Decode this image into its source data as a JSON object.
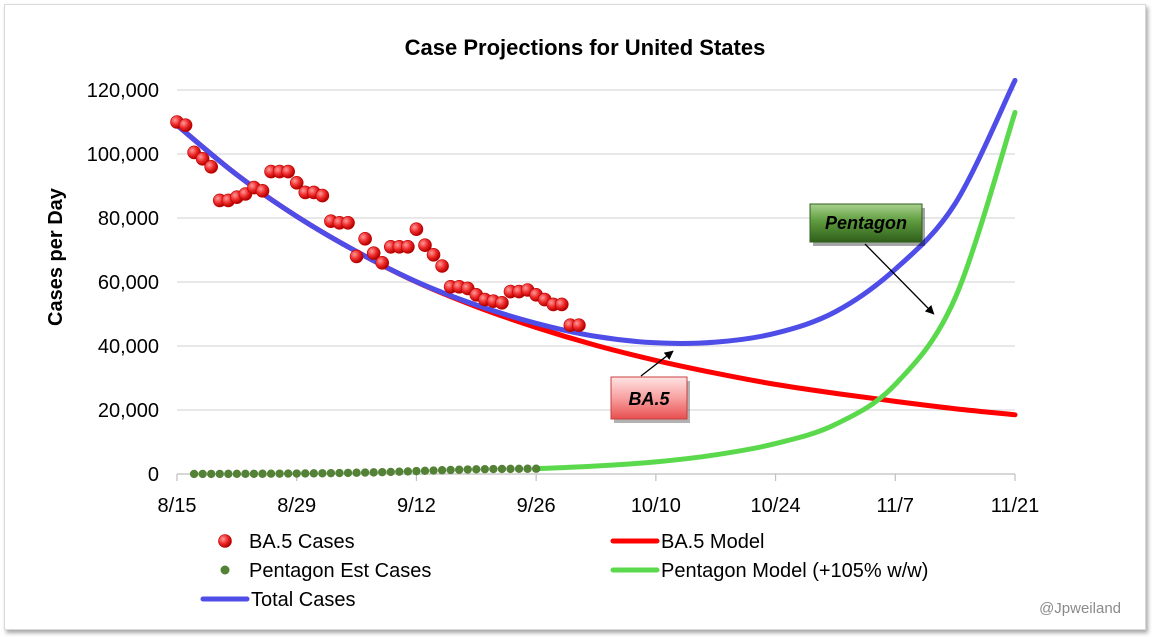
{
  "chart_data": {
    "type": "line",
    "title": "Case Projections for United States",
    "xlabel": "",
    "ylabel": "Cases per Day",
    "x_ticks": [
      "8/15",
      "8/29",
      "9/12",
      "9/26",
      "10/10",
      "10/24",
      "11/7",
      "11/21"
    ],
    "x_range_days": [
      0,
      98
    ],
    "ylim": [
      0,
      120000
    ],
    "y_ticks": [
      0,
      20000,
      40000,
      60000,
      80000,
      100000,
      120000
    ],
    "y_tick_labels": [
      "0",
      "20,000",
      "40,000",
      "60,000",
      "80,000",
      "100,000",
      "120,000"
    ],
    "grid": "horizontal",
    "series": [
      {
        "name": "BA.5 Cases",
        "kind": "scatter",
        "color": "#e8151b",
        "x_days": [
          0,
          1,
          2,
          3,
          4,
          5,
          6,
          7,
          8,
          9,
          10,
          11,
          12,
          13,
          14,
          15,
          16,
          17,
          18,
          19,
          20,
          21,
          22,
          23,
          24,
          25,
          26,
          27,
          28,
          29,
          30,
          31,
          32,
          33,
          34,
          35,
          36,
          37,
          38,
          39,
          40,
          41,
          42,
          43,
          44,
          45,
          46,
          47
        ],
        "values": [
          110000,
          109000,
          100500,
          98500,
          96000,
          85500,
          85500,
          86500,
          87500,
          89500,
          88500,
          94500,
          94500,
          94500,
          91000,
          88000,
          88000,
          87000,
          79000,
          78500,
          78500,
          68000,
          73500,
          69000,
          66000,
          71000,
          71000,
          71000,
          76500,
          71500,
          68500,
          65000,
          58500,
          58500,
          58000,
          56000,
          54500,
          54000,
          53500,
          57000,
          57000,
          57500,
          56000,
          54500,
          53000,
          53000,
          46500,
          46500
        ]
      },
      {
        "name": "Pentagon Est Cases",
        "kind": "scatter",
        "color": "#538135",
        "x_days": [
          2,
          3,
          4,
          5,
          6,
          7,
          8,
          9,
          10,
          11,
          12,
          13,
          14,
          15,
          16,
          17,
          18,
          19,
          20,
          21,
          22,
          23,
          24,
          25,
          26,
          27,
          28,
          29,
          30,
          31,
          32,
          33,
          34,
          35,
          36,
          37,
          38,
          39,
          40,
          41,
          42
        ],
        "values": [
          20,
          25,
          30,
          35,
          40,
          50,
          60,
          70,
          80,
          95,
          110,
          130,
          150,
          175,
          200,
          230,
          265,
          300,
          345,
          395,
          450,
          510,
          580,
          650,
          730,
          810,
          900,
          990,
          1080,
          1170,
          1250,
          1330,
          1400,
          1460,
          1510,
          1550,
          1580,
          1600,
          1620,
          1640,
          1650
        ]
      },
      {
        "name": "BA.5 Model",
        "kind": "line",
        "color": "#ff0000",
        "x_days": [
          0,
          7,
          14,
          21,
          28,
          35,
          42,
          49,
          56,
          63,
          70,
          77,
          84,
          91,
          98
        ],
        "values": [
          109000,
          93500,
          80500,
          69500,
          60000,
          52300,
          45800,
          40200,
          35500,
          31500,
          28000,
          25200,
          22700,
          20400,
          18500
        ]
      },
      {
        "name": "Pentagon Model (+105% w/w)",
        "kind": "line",
        "color": "#5bd94c",
        "x_days": [
          42,
          49,
          56,
          63,
          70,
          77,
          84,
          91,
          98
        ],
        "values": [
          1650,
          2500,
          3800,
          6000,
          9500,
          15500,
          28000,
          55000,
          113000
        ]
      },
      {
        "name": "Total Cases",
        "kind": "line",
        "color": "#4f4de8",
        "x_days": [
          0,
          7,
          14,
          21,
          28,
          35,
          42,
          49,
          56,
          63,
          70,
          77,
          84,
          91,
          98
        ],
        "values": [
          109000,
          93500,
          80500,
          69500,
          60100,
          52800,
          47100,
          43000,
          41000,
          41200,
          44000,
          50700,
          64000,
          84500,
          123000
        ]
      }
    ],
    "annotations": [
      {
        "text": "Pentagon",
        "target_series": "Pentagon Model (+105% w/w)",
        "target_x_day": 88.5,
        "target_value": 50000,
        "bg": "#3f7f28",
        "text_color": "#000000"
      },
      {
        "text": "BA.5",
        "target_series": "BA.5 Model",
        "target_x_day": 58,
        "target_value": 39000,
        "bg": "#f46a6a",
        "text_color": "#000000"
      }
    ],
    "legend_position": "bottom",
    "legend": [
      {
        "label": "BA.5 Cases",
        "marker": "dot",
        "color": "#e8151b"
      },
      {
        "label": "BA.5 Model",
        "marker": "line",
        "color": "#ff0000"
      },
      {
        "label": "Pentagon Est Cases",
        "marker": "dot",
        "color": "#538135"
      },
      {
        "label": "Pentagon Model (+105% w/w)",
        "marker": "line",
        "color": "#5bd94c"
      },
      {
        "label": "Total Cases",
        "marker": "line",
        "color": "#4f4de8"
      }
    ]
  },
  "credit": "@Jpweiland"
}
